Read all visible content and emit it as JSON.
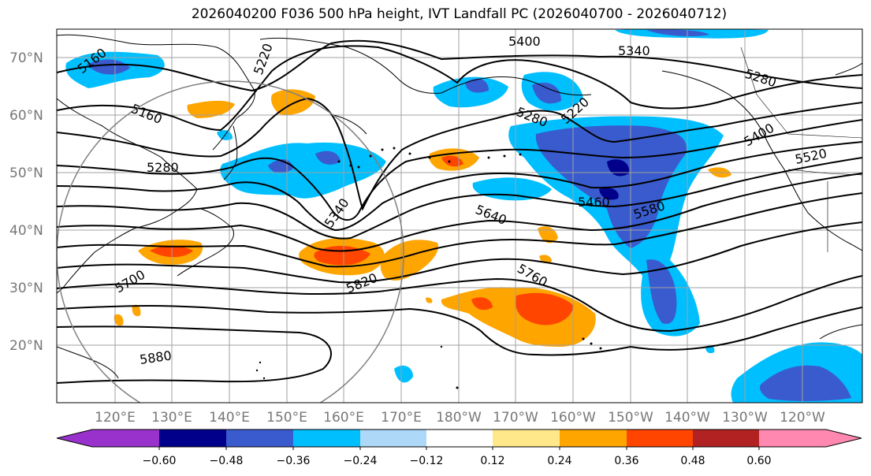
{
  "title": "2026040200 F036 500 hPa height, IVT Landfall PC (2026040700 - 2026040712)",
  "map": {
    "lat_labels": [
      "70°N",
      "60°N",
      "50°N",
      "40°N",
      "30°N",
      "20°N"
    ],
    "lon_labels": [
      "120°E",
      "130°E",
      "140°E",
      "150°E",
      "160°E",
      "170°E",
      "180°W",
      "170°W",
      "160°W",
      "150°W",
      "140°W",
      "130°W",
      "120°W"
    ],
    "contour_labels": [
      "5160",
      "5220",
      "5400",
      "5340",
      "5280",
      "5160",
      "5220",
      "5280",
      "5280",
      "5400",
      "5520",
      "5340",
      "5460",
      "5580",
      "5640",
      "5700",
      "5760",
      "5820",
      "5880"
    ]
  },
  "colorbar": {
    "ticks": [
      "−0.60",
      "−0.48",
      "−0.36",
      "−0.24",
      "−0.12",
      "0.12",
      "0.24",
      "0.36",
      "0.48",
      "0.60"
    ],
    "colors": [
      "#9932cc",
      "#00008b",
      "#3a5bcd",
      "#00bfff",
      "#add8f7",
      "#ffffff",
      "#ffe88a",
      "#ffa500",
      "#ff4500",
      "#b22222",
      "#ff88b0"
    ]
  }
}
